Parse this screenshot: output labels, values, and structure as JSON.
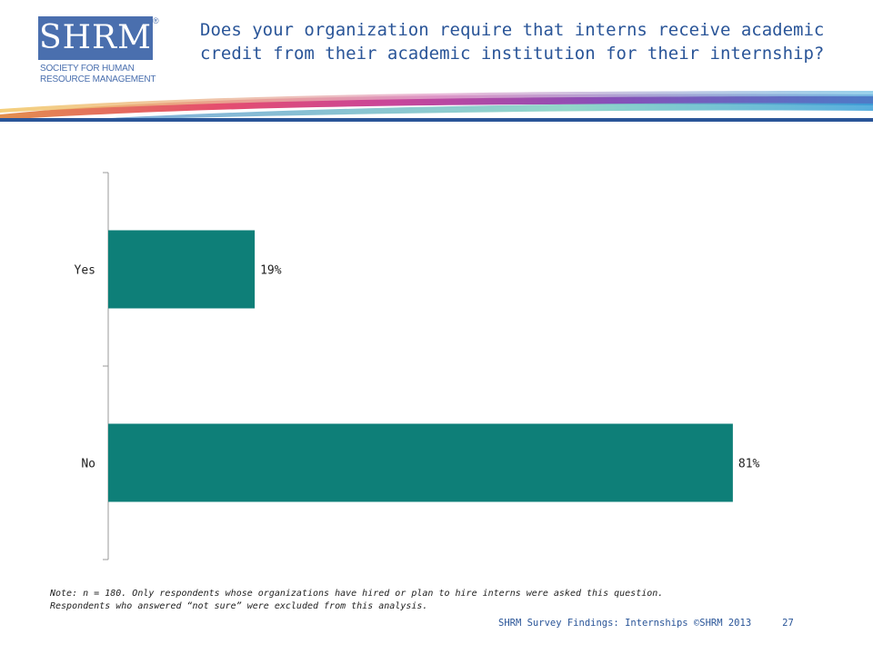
{
  "logo": {
    "wordmark": "SHRM",
    "registered": "®",
    "line1": "SOCIETY FOR HUMAN",
    "line2": "RESOURCE MANAGEMENT"
  },
  "title": "Does your organization require that interns receive academic credit from their academic institution for their internship?",
  "chart_data": {
    "type": "bar",
    "orientation": "horizontal",
    "categories": [
      "Yes",
      "No"
    ],
    "values": [
      19,
      81
    ],
    "value_labels": [
      "19%",
      "81%"
    ],
    "xlim": [
      0,
      100
    ],
    "grid": false,
    "bar_color": "#0e7f78"
  },
  "note": {
    "line1": "Note: n = 180. Only respondents whose organizations have hired or plan to hire interns were asked this question.",
    "line2": "Respondents who answered “not sure” were excluded from this analysis."
  },
  "footer": {
    "text": "SHRM Survey Findings: Internships ©SHRM 2013",
    "page": "27"
  }
}
